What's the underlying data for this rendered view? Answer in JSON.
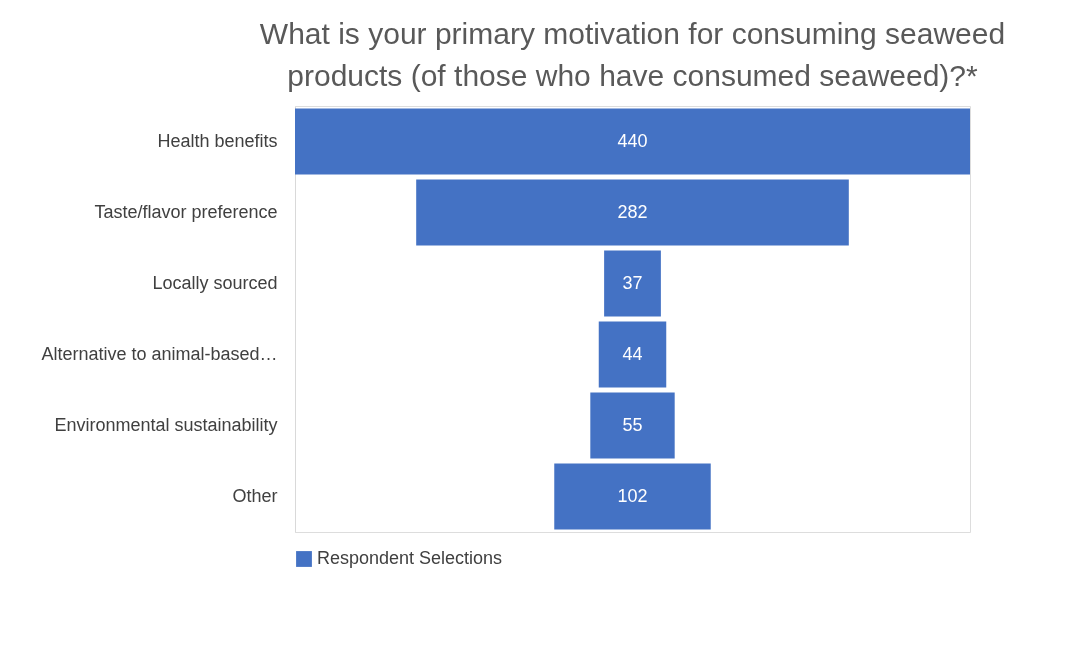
{
  "chart_data": {
    "type": "other",
    "title": "What is your primary motivation for consuming seaweed products (of those who have consumed seaweed)?*",
    "categories": [
      "Health benefits",
      "Taste/flavor preference",
      "Locally sourced",
      "Alternative to animal-based…",
      "Environmental sustainability",
      "Other"
    ],
    "series": [
      {
        "name": "Respondent Selections",
        "color": "#4472c4",
        "values": [
          440,
          282,
          37,
          44,
          55,
          102
        ]
      }
    ],
    "data_labels": true,
    "legend": "bottom"
  }
}
